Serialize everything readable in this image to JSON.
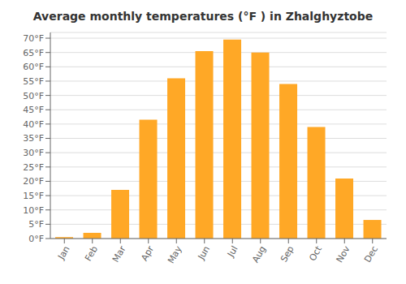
{
  "chart_data": {
    "type": "bar",
    "title": "Average monthly temperatures (°F ) in Zhalghyztobe",
    "categories": [
      "Jan",
      "Feb",
      "Mar",
      "Apr",
      "May",
      "Jun",
      "Jul",
      "Aug",
      "Sep",
      "Oct",
      "Nov",
      "Dec"
    ],
    "values": [
      0.5,
      2,
      17,
      41.5,
      56,
      65.5,
      69.5,
      65,
      54,
      39,
      21,
      6.5
    ],
    "color": "#FFA826",
    "ylim": [
      0,
      72
    ],
    "yticks": [
      {
        "value": 0,
        "label": "0°F"
      },
      {
        "value": 5,
        "label": "5°F"
      },
      {
        "value": 10,
        "label": "10°F"
      },
      {
        "value": 15,
        "label": "15°F"
      },
      {
        "value": 20,
        "label": "20°F"
      },
      {
        "value": 25,
        "label": "25°F"
      },
      {
        "value": 30,
        "label": "30°F"
      },
      {
        "value": 35,
        "label": "35°F"
      },
      {
        "value": 40,
        "label": "40°F"
      },
      {
        "value": 45,
        "label": "45°F"
      },
      {
        "value": 50,
        "label": "50°F"
      },
      {
        "value": 55,
        "label": "55°F"
      },
      {
        "value": 60,
        "label": "60°F"
      },
      {
        "value": 65,
        "label": "65°F"
      },
      {
        "value": 70,
        "label": "70°F"
      }
    ],
    "grid": true
  }
}
